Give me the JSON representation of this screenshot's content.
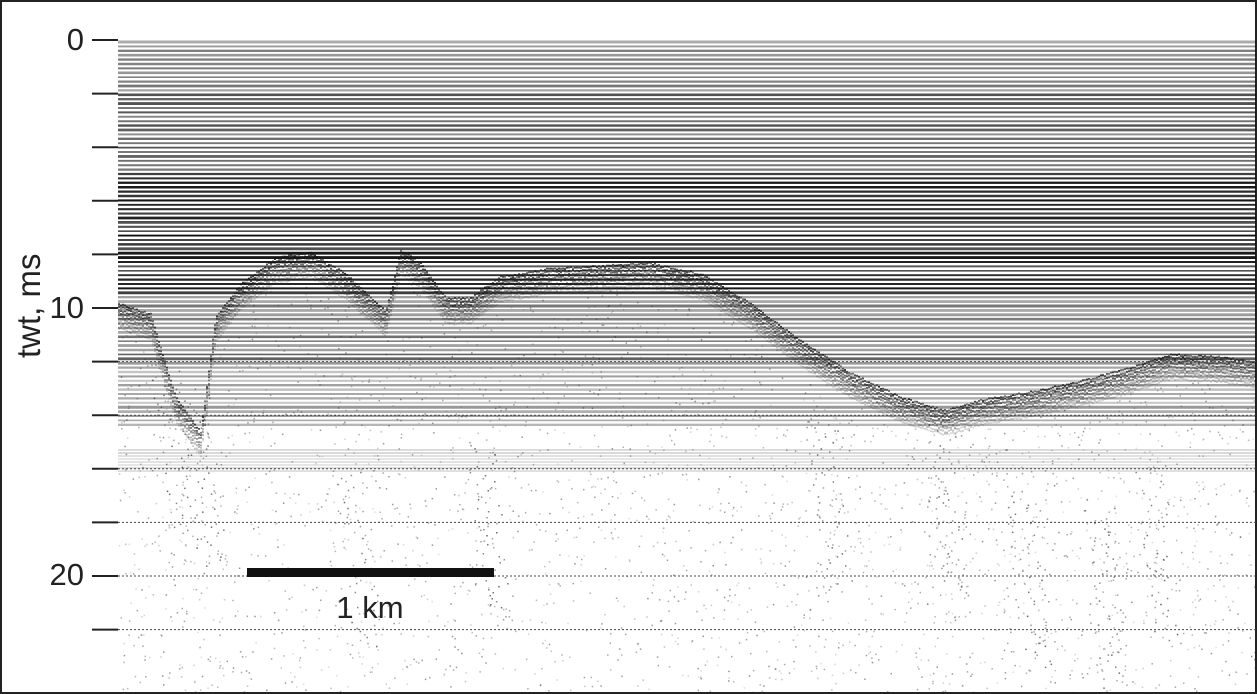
{
  "figure": {
    "y_axis": {
      "title": "twt, ms",
      "range_ms": [
        0,
        24
      ],
      "major_ticks": [
        0,
        10,
        20
      ],
      "minor_ticks": [
        2,
        4,
        6,
        8,
        12,
        14,
        16,
        18,
        22
      ],
      "tick_labels": [
        "0",
        "10",
        "20"
      ],
      "gridlines": "dotted horizontal at every 2 ms from 12 ms downward"
    },
    "scale_bar": {
      "label": "1 km",
      "length_km": 1
    },
    "seismic_section": {
      "description_colors": {
        "ink": "#111111",
        "background": "#ffffff"
      }
    }
  }
}
